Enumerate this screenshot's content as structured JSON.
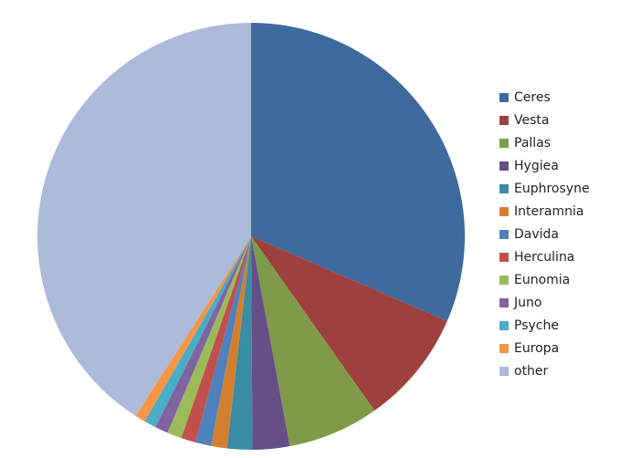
{
  "chart_data": {
    "type": "pie",
    "categories": [
      "Ceres",
      "Vesta",
      "Pallas",
      "Hygiea",
      "Euphrosyne",
      "Interamnia",
      "Davida",
      "Herculina",
      "Eunomia",
      "Juno",
      "Psyche",
      "Europa",
      "other"
    ],
    "values": [
      31.5,
      8.7,
      6.9,
      2.8,
      1.9,
      1.2,
      1.2,
      1.1,
      1.1,
      1.0,
      0.9,
      0.8,
      40.9
    ],
    "colors": [
      "#3e6a9e",
      "#9e413e",
      "#7f9a48",
      "#664f86",
      "#3a8da4",
      "#d3802e",
      "#4f81bd",
      "#c0504d",
      "#9bbb59",
      "#8064a2",
      "#4bacc6",
      "#f79646",
      "#abbbd9"
    ],
    "legend": "right"
  }
}
